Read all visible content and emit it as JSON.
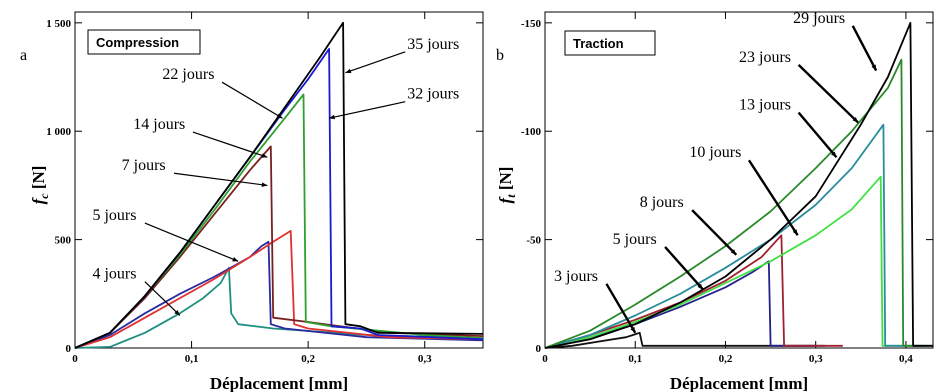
{
  "chart_data": [
    {
      "type": "line",
      "panel_letter": "a",
      "title": "Compression",
      "xlabel": "Déplacement [mm]",
      "ylabel_main": "f",
      "ylabel_sub": "c",
      "ylabel_unit": " [N]",
      "xlim": [
        0,
        0.35
      ],
      "ylim": [
        0,
        1550
      ],
      "x_ticks": [
        {
          "v": 0,
          "label": "0"
        },
        {
          "v": 0.1,
          "label": "0,1"
        },
        {
          "v": 0.2,
          "label": "0,2"
        },
        {
          "v": 0.3,
          "label": "0,3"
        }
      ],
      "y_ticks": [
        {
          "v": 0,
          "label": "0"
        },
        {
          "v": 500,
          "label": "500"
        },
        {
          "v": 1000,
          "label": "1 000"
        },
        {
          "v": 1500,
          "label": "1 500"
        }
      ],
      "grid": false,
      "series": [
        {
          "name": "4 jours",
          "color": "#1f8f7f",
          "points": [
            [
              0,
              0
            ],
            [
              0.03,
              5
            ],
            [
              0.06,
              70
            ],
            [
              0.09,
              160
            ],
            [
              0.11,
              230
            ],
            [
              0.125,
              300
            ],
            [
              0.132,
              370
            ],
            [
              0.134,
              160
            ],
            [
              0.14,
              110
            ],
            [
              0.17,
              90
            ],
            [
              0.25,
              60
            ],
            [
              0.35,
              45
            ]
          ]
        },
        {
          "name": "5 jours",
          "color": "#2a2aa0",
          "points": [
            [
              0,
              0
            ],
            [
              0.03,
              60
            ],
            [
              0.06,
              160
            ],
            [
              0.09,
              250
            ],
            [
              0.12,
              330
            ],
            [
              0.15,
              420
            ],
            [
              0.16,
              470
            ],
            [
              0.166,
              490
            ],
            [
              0.168,
              110
            ],
            [
              0.18,
              90
            ],
            [
              0.25,
              50
            ],
            [
              0.35,
              35
            ]
          ]
        },
        {
          "name": "7 jours",
          "color": "#e03030",
          "points": [
            [
              0,
              0
            ],
            [
              0.03,
              50
            ],
            [
              0.06,
              140
            ],
            [
              0.09,
              230
            ],
            [
              0.12,
              320
            ],
            [
              0.15,
              420
            ],
            [
              0.17,
              490
            ],
            [
              0.185,
              540
            ],
            [
              0.188,
              110
            ],
            [
              0.2,
              90
            ],
            [
              0.27,
              50
            ],
            [
              0.35,
              40
            ]
          ]
        },
        {
          "name": "14 jours",
          "color": "#7a2020",
          "points": [
            [
              0,
              0
            ],
            [
              0.03,
              70
            ],
            [
              0.06,
              230
            ],
            [
              0.09,
              420
            ],
            [
              0.12,
              620
            ],
            [
              0.15,
              820
            ],
            [
              0.168,
              930
            ],
            [
              0.17,
              140
            ],
            [
              0.2,
              120
            ],
            [
              0.27,
              70
            ],
            [
              0.35,
              55
            ]
          ]
        },
        {
          "name": "22 jours",
          "color": "#2ea02e",
          "points": [
            [
              0,
              0
            ],
            [
              0.03,
              70
            ],
            [
              0.06,
              240
            ],
            [
              0.09,
              430
            ],
            [
              0.12,
              640
            ],
            [
              0.15,
              860
            ],
            [
              0.18,
              1060
            ],
            [
              0.196,
              1170
            ],
            [
              0.198,
              120
            ],
            [
              0.22,
              100
            ],
            [
              0.3,
              60
            ],
            [
              0.35,
              45
            ]
          ]
        },
        {
          "name": "32 jours",
          "color": "#1a1ad0",
          "points": [
            [
              0,
              0
            ],
            [
              0.03,
              70
            ],
            [
              0.06,
              240
            ],
            [
              0.09,
              440
            ],
            [
              0.12,
              660
            ],
            [
              0.15,
              880
            ],
            [
              0.18,
              1100
            ],
            [
              0.2,
              1240
            ],
            [
              0.218,
              1380
            ],
            [
              0.22,
              100
            ],
            [
              0.245,
              90
            ],
            [
              0.26,
              60
            ],
            [
              0.35,
              40
            ]
          ]
        },
        {
          "name": "35 jours",
          "color": "#000000",
          "points": [
            [
              0,
              0
            ],
            [
              0.03,
              70
            ],
            [
              0.06,
              240
            ],
            [
              0.09,
              440
            ],
            [
              0.12,
              660
            ],
            [
              0.15,
              880
            ],
            [
              0.18,
              1110
            ],
            [
              0.21,
              1340
            ],
            [
              0.23,
              1500
            ],
            [
              0.232,
              110
            ],
            [
              0.245,
              100
            ],
            [
              0.26,
              70
            ],
            [
              0.35,
              65
            ]
          ]
        }
      ],
      "annotations": [
        {
          "text": "35 jours",
          "pt": [
            0.232,
            1270
          ],
          "label_at": [
            0.285,
            1380
          ]
        },
        {
          "text": "32 jours",
          "pt": [
            0.218,
            1060
          ],
          "label_at": [
            0.285,
            1150
          ]
        },
        {
          "text": "22 jours",
          "pt": [
            0.178,
            1060
          ],
          "label_at": [
            0.075,
            1240
          ]
        },
        {
          "text": "14 jours",
          "pt": [
            0.165,
            880
          ],
          "label_at": [
            0.05,
            1010
          ]
        },
        {
          "text": "7 jours",
          "pt": [
            0.165,
            750
          ],
          "label_at": [
            0.04,
            820
          ]
        },
        {
          "text": "5 jours",
          "pt": [
            0.14,
            400
          ],
          "label_at": [
            0.015,
            590
          ]
        },
        {
          "text": "4 jours",
          "pt": [
            0.09,
            150
          ],
          "label_at": [
            0.015,
            320
          ]
        }
      ]
    },
    {
      "type": "line",
      "panel_letter": "b",
      "title": "Traction",
      "xlabel": "Déplacement [mm]",
      "ylabel_main": "f",
      "ylabel_sub": "t",
      "ylabel_unit": " [N]",
      "xlim": [
        0,
        0.43
      ],
      "ylim": [
        0,
        -155
      ],
      "x_ticks": [
        {
          "v": 0,
          "label": "0"
        },
        {
          "v": 0.1,
          "label": "0,1"
        },
        {
          "v": 0.2,
          "label": "0,2"
        },
        {
          "v": 0.3,
          "label": "0,3"
        },
        {
          "v": 0.4,
          "label": "0,4"
        }
      ],
      "y_ticks": [
        {
          "v": 0,
          "label": "0"
        },
        {
          "v": -50,
          "label": "-50"
        },
        {
          "v": -100,
          "label": "-100"
        },
        {
          "v": -150,
          "label": "-150"
        }
      ],
      "grid": false,
      "series": [
        {
          "name": "3 jours",
          "color": "#111111",
          "points": [
            [
              0,
              0
            ],
            [
              0.03,
              -1
            ],
            [
              0.06,
              -3
            ],
            [
              0.09,
              -5
            ],
            [
              0.105,
              -7
            ],
            [
              0.108,
              -1
            ],
            [
              0.2,
              -1
            ],
            [
              0.3,
              -1
            ]
          ]
        },
        {
          "name": "5 jours",
          "color": "#22228a",
          "points": [
            [
              0,
              0
            ],
            [
              0.05,
              -5
            ],
            [
              0.1,
              -11
            ],
            [
              0.15,
              -19
            ],
            [
              0.2,
              -28
            ],
            [
              0.23,
              -35
            ],
            [
              0.248,
              -40
            ],
            [
              0.25,
              -1
            ],
            [
              0.31,
              -1
            ]
          ]
        },
        {
          "name": "8 jours",
          "color": "#a02030",
          "points": [
            [
              0,
              0
            ],
            [
              0.05,
              -6
            ],
            [
              0.1,
              -13
            ],
            [
              0.15,
              -21
            ],
            [
              0.2,
              -31
            ],
            [
              0.24,
              -42
            ],
            [
              0.262,
              -52
            ],
            [
              0.265,
              -1
            ],
            [
              0.33,
              -1
            ]
          ]
        },
        {
          "name": "10 jours",
          "color": "#40e040",
          "points": [
            [
              0,
              0
            ],
            [
              0.05,
              -5
            ],
            [
              0.1,
              -12
            ],
            [
              0.15,
              -20
            ],
            [
              0.2,
              -30
            ],
            [
              0.25,
              -40
            ],
            [
              0.3,
              -52
            ],
            [
              0.34,
              -64
            ],
            [
              0.372,
              -79
            ],
            [
              0.374,
              -1
            ],
            [
              0.4,
              -1
            ]
          ]
        },
        {
          "name": "13 jours",
          "color": "#2a8c9c",
          "points": [
            [
              0,
              0
            ],
            [
              0.05,
              -6
            ],
            [
              0.1,
              -15
            ],
            [
              0.15,
              -25
            ],
            [
              0.2,
              -37
            ],
            [
              0.25,
              -50
            ],
            [
              0.3,
              -66
            ],
            [
              0.34,
              -83
            ],
            [
              0.375,
              -103
            ],
            [
              0.377,
              -1
            ],
            [
              0.42,
              -1
            ]
          ]
        },
        {
          "name": "23 jours",
          "color": "#2a8a2a",
          "points": [
            [
              0,
              0
            ],
            [
              0.05,
              -8
            ],
            [
              0.1,
              -20
            ],
            [
              0.15,
              -33
            ],
            [
              0.2,
              -47
            ],
            [
              0.25,
              -63
            ],
            [
              0.3,
              -83
            ],
            [
              0.34,
              -100
            ],
            [
              0.38,
              -120
            ],
            [
              0.395,
              -133
            ],
            [
              0.397,
              -1
            ],
            [
              0.43,
              -1
            ]
          ]
        },
        {
          "name": "29 jours",
          "color": "#000000",
          "points": [
            [
              0,
              0
            ],
            [
              0.05,
              -4
            ],
            [
              0.1,
              -11
            ],
            [
              0.15,
              -21
            ],
            [
              0.2,
              -33
            ],
            [
              0.25,
              -50
            ],
            [
              0.3,
              -70
            ],
            [
              0.35,
              -103
            ],
            [
              0.38,
              -125
            ],
            [
              0.405,
              -150
            ],
            [
              0.408,
              -1
            ],
            [
              0.43,
              -1
            ]
          ]
        }
      ],
      "annotations": [
        {
          "text": "29 jours",
          "pt": [
            0.367,
            -128
          ],
          "label_at": [
            0.275,
            -150
          ]
        },
        {
          "text": "23 jours",
          "pt": [
            0.347,
            -104
          ],
          "label_at": [
            0.215,
            -132
          ]
        },
        {
          "text": "13 jours",
          "pt": [
            0.323,
            -88
          ],
          "label_at": [
            0.215,
            -110
          ]
        },
        {
          "text": "10 jours",
          "pt": [
            0.28,
            -52
          ],
          "label_at": [
            0.16,
            -88
          ]
        },
        {
          "text": "8 jours",
          "pt": [
            0.212,
            -43
          ],
          "label_at": [
            0.105,
            -65
          ]
        },
        {
          "text": "5 jours",
          "pt": [
            0.175,
            -27
          ],
          "label_at": [
            0.075,
            -48
          ]
        },
        {
          "text": "3 jours",
          "pt": [
            0.1,
            -7
          ],
          "label_at": [
            0.01,
            -31
          ]
        }
      ]
    }
  ]
}
